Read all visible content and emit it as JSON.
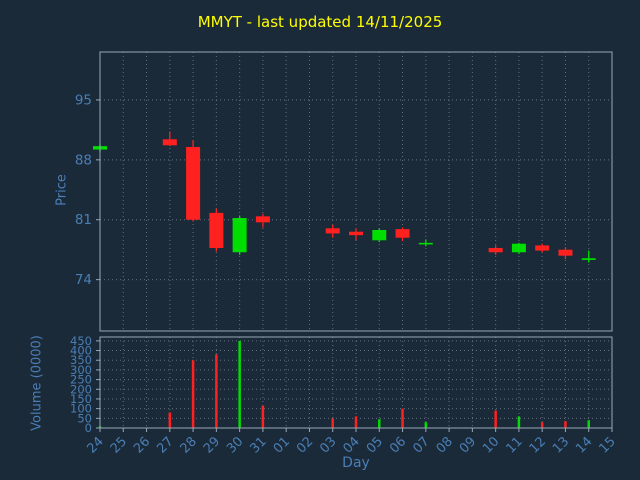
{
  "colors": {
    "background": "#1b2a38",
    "title": "#ffff00",
    "axis_text": "#4a7eb5",
    "grid": "#8a98a6",
    "spine": "#9aa8b6",
    "up": "#00dd00",
    "down": "#ff2020"
  },
  "chart_data": {
    "type": "candlestick+volume",
    "title": "MMYT - last updated 14/11/2025",
    "xlabel": "Day",
    "legend": "none",
    "grid": "dotted",
    "price_axis": {
      "label": "Price",
      "ticks": [
        74,
        81,
        88,
        95
      ],
      "ylim": [
        68,
        100.6
      ]
    },
    "volume_axis": {
      "label": "Volume (0000)",
      "ticks": [
        0,
        50,
        100,
        150,
        200,
        250,
        300,
        350,
        400,
        450
      ],
      "ylim": [
        0,
        470
      ]
    },
    "categories": [
      "24",
      "25",
      "26",
      "27",
      "28",
      "29",
      "30",
      "31",
      "01",
      "02",
      "03",
      "04",
      "05",
      "06",
      "07",
      "08",
      "09",
      "10",
      "11",
      "12",
      "13",
      "14",
      "15"
    ],
    "candles": [
      {
        "day": "24",
        "open": 89.2,
        "high": 89.8,
        "low": 88.9,
        "close": 89.6,
        "volume": 8
      },
      {
        "day": "27",
        "open": 90.4,
        "high": 91.3,
        "low": 89.6,
        "close": 89.7,
        "volume": 80
      },
      {
        "day": "28",
        "open": 89.5,
        "high": 90.3,
        "low": 80.8,
        "close": 81.0,
        "volume": 350
      },
      {
        "day": "29",
        "open": 81.8,
        "high": 82.3,
        "low": 77.3,
        "close": 77.7,
        "volume": 380
      },
      {
        "day": "30",
        "open": 77.2,
        "high": 81.5,
        "low": 76.9,
        "close": 81.2,
        "volume": 450
      },
      {
        "day": "31",
        "open": 81.4,
        "high": 81.7,
        "low": 80.1,
        "close": 80.7,
        "volume": 115
      },
      {
        "day": "03",
        "open": 80.0,
        "high": 80.4,
        "low": 78.9,
        "close": 79.4,
        "volume": 50
      },
      {
        "day": "04",
        "open": 79.6,
        "high": 80.0,
        "low": 78.6,
        "close": 79.2,
        "volume": 60
      },
      {
        "day": "05",
        "open": 78.6,
        "high": 80.0,
        "low": 78.4,
        "close": 79.8,
        "volume": 45
      },
      {
        "day": "06",
        "open": 79.9,
        "high": 80.1,
        "low": 78.5,
        "close": 78.9,
        "volume": 100
      },
      {
        "day": "07",
        "open": 78.2,
        "high": 78.7,
        "low": 77.9,
        "close": 78.3,
        "volume": 30
      },
      {
        "day": "10",
        "open": 77.7,
        "high": 78.0,
        "low": 76.9,
        "close": 77.2,
        "volume": 90
      },
      {
        "day": "11",
        "open": 77.2,
        "high": 78.3,
        "low": 77.0,
        "close": 78.2,
        "volume": 60
      },
      {
        "day": "12",
        "open": 78.0,
        "high": 78.2,
        "low": 77.2,
        "close": 77.4,
        "volume": 30
      },
      {
        "day": "13",
        "open": 77.5,
        "high": 77.8,
        "low": 76.4,
        "close": 76.8,
        "volume": 35
      },
      {
        "day": "14",
        "open": 76.3,
        "high": 77.4,
        "low": 76.0,
        "close": 76.5,
        "volume": 40
      }
    ]
  }
}
